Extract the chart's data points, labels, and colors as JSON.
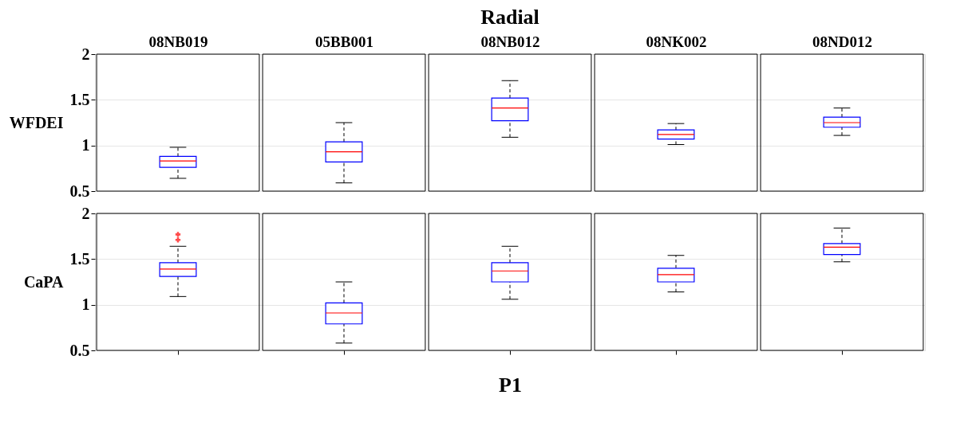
{
  "chart_data": [
    {
      "type": "box",
      "title": "Radial",
      "ylabel": "WFDEI",
      "categories": [
        "08NB019",
        "05BB001",
        "08NB012",
        "08NK002",
        "08ND012"
      ],
      "ylim": [
        0.5,
        2
      ],
      "yticks": [
        0.5,
        1,
        1.5,
        2
      ],
      "grid": "y",
      "series": [
        {
          "color": "#0000ff",
          "boxes": [
            {
              "low": 0.64,
              "q1": 0.76,
              "median": 0.83,
              "q3": 0.88,
              "high": 0.98
            },
            {
              "low": 0.59,
              "q1": 0.82,
              "median": 0.93,
              "q3": 1.04,
              "high": 1.25
            },
            {
              "low": 1.09,
              "q1": 1.27,
              "median": 1.41,
              "q3": 1.52,
              "high": 1.71
            },
            {
              "low": 1.01,
              "q1": 1.07,
              "median": 1.12,
              "q3": 1.17,
              "high": 1.24
            },
            {
              "low": 1.11,
              "q1": 1.2,
              "median": 1.25,
              "q3": 1.31,
              "high": 1.41
            }
          ]
        }
      ]
    },
    {
      "type": "box",
      "ylabel": "CaPA",
      "xlabel": "P1",
      "categories": [
        null,
        null,
        null,
        null,
        null
      ],
      "ylim": [
        0.5,
        2
      ],
      "yticks": [
        0.5,
        1,
        1.5,
        2
      ],
      "grid": "y",
      "tick_labels": "y",
      "series": [
        {
          "color": "#0000ff",
          "boxes": [
            {
              "low": 1.09,
              "q1": 1.31,
              "median": 1.39,
              "q3": 1.46,
              "high": 1.64,
              "outliers": [
                1.71,
                1.77
              ]
            },
            {
              "low": 0.58,
              "q1": 0.79,
              "median": 0.91,
              "q3": 1.02,
              "high": 1.25
            },
            {
              "low": 1.06,
              "q1": 1.25,
              "median": 1.37,
              "q3": 1.46,
              "high": 1.64
            },
            {
              "low": 1.14,
              "q1": 1.25,
              "median": 1.33,
              "q3": 1.4,
              "high": 1.54
            },
            {
              "low": 1.47,
              "q1": 1.55,
              "median": 1.63,
              "q3": 1.67,
              "high": 1.84
            }
          ]
        }
      ]
    }
  ]
}
